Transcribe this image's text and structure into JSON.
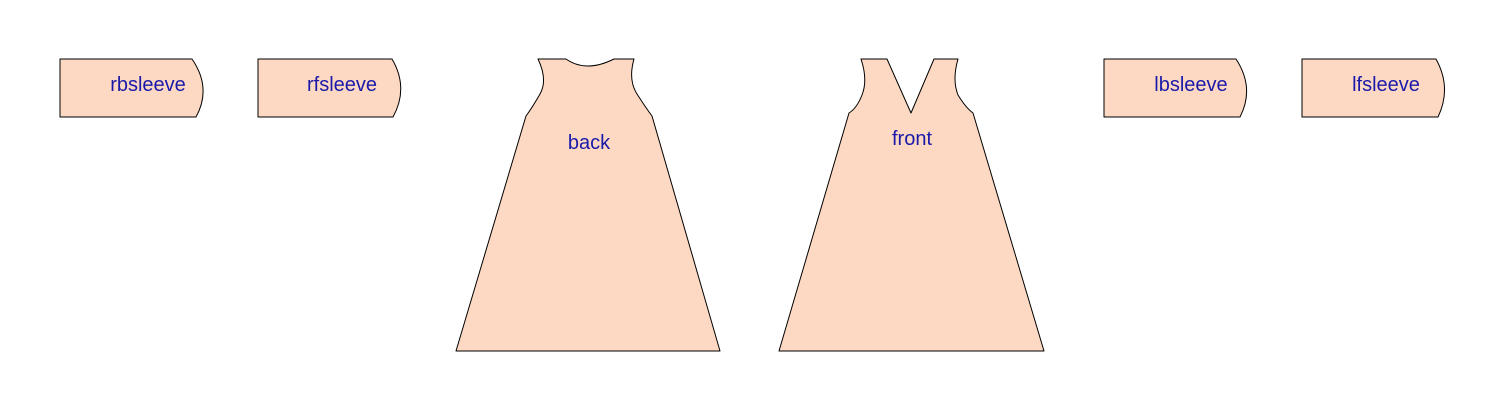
{
  "diagram": {
    "fill_color": "#FDD9C3",
    "stroke_color": "#000000",
    "label_color": "#1A1AAA",
    "pieces": [
      {
        "id": "rbsleeve",
        "label": "rbsleeve",
        "kind": "sleeve"
      },
      {
        "id": "rfsleeve",
        "label": "rfsleeve",
        "kind": "sleeve"
      },
      {
        "id": "back",
        "label": "back",
        "kind": "bodice-back"
      },
      {
        "id": "front",
        "label": "front",
        "kind": "bodice-front"
      },
      {
        "id": "lbsleeve",
        "label": "lbsleeve",
        "kind": "sleeve"
      },
      {
        "id": "lfsleeve",
        "label": "lfsleeve",
        "kind": "sleeve"
      }
    ]
  }
}
